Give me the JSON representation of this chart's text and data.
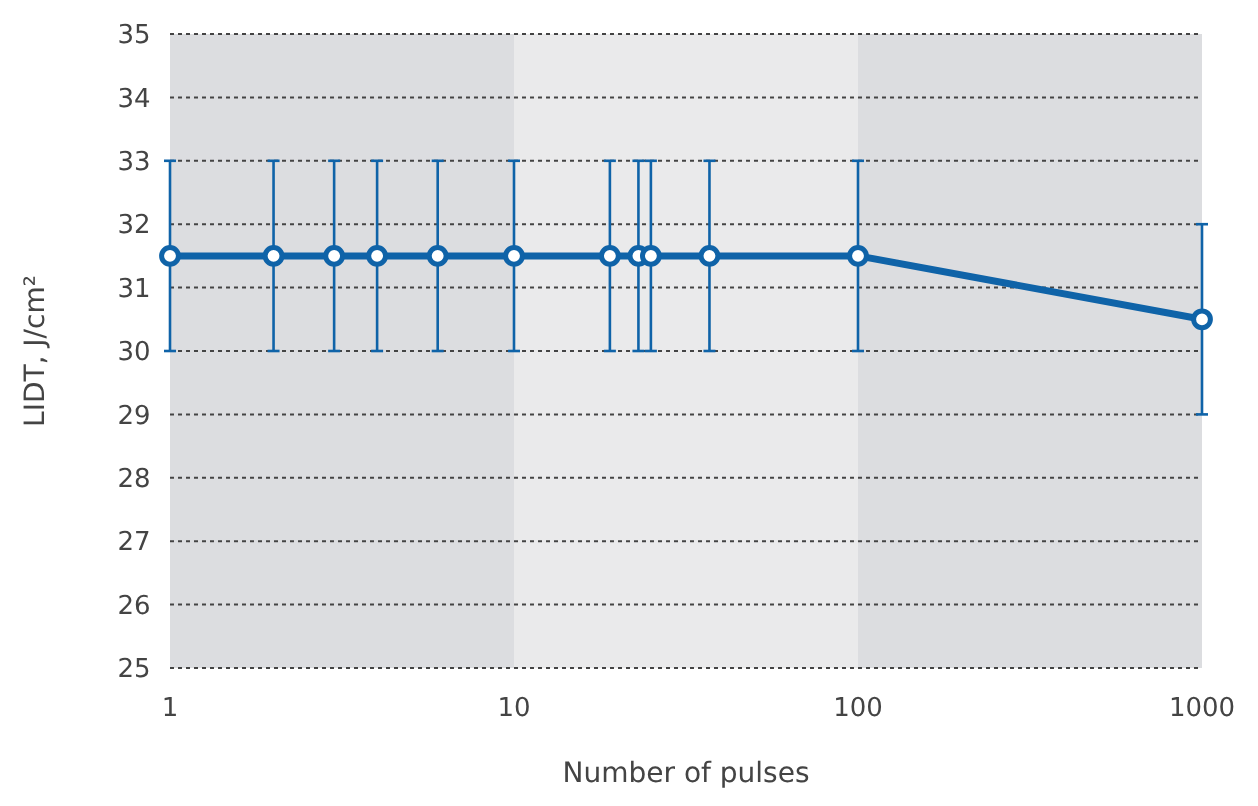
{
  "chart_data": {
    "type": "line",
    "xlabel": "Number of pulses",
    "ylabel": "LIDT, J/cm²",
    "x": [
      1,
      2,
      3,
      4,
      6,
      10,
      19,
      23,
      25,
      37,
      100,
      1000
    ],
    "series": [
      {
        "color": "#0f63a8",
        "values": [
          31.5,
          31.5,
          31.5,
          31.5,
          31.5,
          31.5,
          31.5,
          31.5,
          31.5,
          31.5,
          31.5,
          30.5
        ],
        "errors": [
          1.5,
          1.5,
          1.5,
          1.5,
          1.5,
          1.5,
          1.5,
          1.5,
          1.5,
          1.5,
          1.5,
          1.5
        ]
      }
    ],
    "log": "x",
    "xlim": [
      1,
      1000
    ],
    "xticks": [
      1,
      10,
      100,
      1000
    ],
    "ylim": [
      25,
      35
    ],
    "yticks": [
      25,
      26,
      27,
      28,
      29,
      30,
      31,
      32,
      33,
      34,
      35
    ],
    "grid": "y",
    "marker": "circle",
    "line_style": "solid",
    "bands": [
      {
        "axis": "x",
        "from": 1,
        "to": 10,
        "color": "#dcdde0"
      },
      {
        "axis": "x",
        "from": 10,
        "to": 100,
        "color": "#eaeaeb"
      },
      {
        "axis": "x",
        "from": 100,
        "to": 1000,
        "color": "#dcdde0"
      }
    ]
  }
}
